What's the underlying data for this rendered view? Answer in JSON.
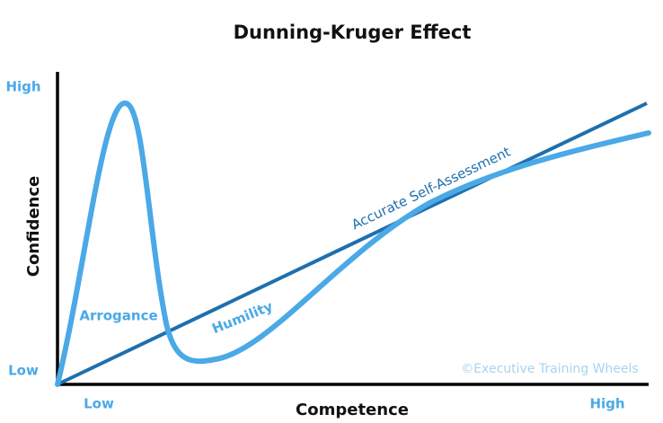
{
  "title": "Dunning-Kruger Effect",
  "y_axis": {
    "label": "Confidence",
    "high": "High",
    "low": "Low"
  },
  "x_axis": {
    "label": "Competence",
    "low": "Low",
    "high": "High"
  },
  "annotations": {
    "arrogance": "Arrogance",
    "humility": "Humility",
    "accurate": "Accurate Self-Assessment"
  },
  "credit": "©Executive Training Wheels"
}
